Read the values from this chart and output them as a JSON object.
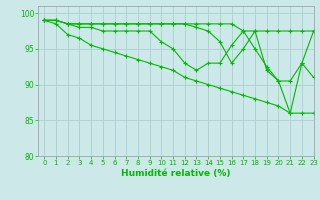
{
  "title": "",
  "xlabel": "Humidité relative (%)",
  "ylabel": "",
  "background_color": "#cce8e8",
  "grid_color": "#aad0d0",
  "line_color": "#00bb00",
  "marker": "+",
  "xlim": [
    -0.5,
    23
  ],
  "ylim": [
    80,
    101
  ],
  "yticks": [
    80,
    85,
    90,
    95,
    100
  ],
  "xticks": [
    0,
    1,
    2,
    3,
    4,
    5,
    6,
    7,
    8,
    9,
    10,
    11,
    12,
    13,
    14,
    15,
    16,
    17,
    18,
    19,
    20,
    21,
    22,
    23
  ],
  "series": [
    [
      99,
      99,
      98.5,
      98.5,
      98.5,
      98.5,
      98.5,
      98.5,
      98.5,
      98.5,
      98.5,
      98.5,
      98.5,
      98.5,
      98.5,
      98.5,
      98.5,
      97.5,
      97.5,
      97.5,
      97.5,
      97.5,
      97.5,
      97.5
    ],
    [
      99,
      99,
      98.5,
      98.5,
      98.5,
      98.5,
      98.5,
      98.5,
      98.5,
      98.5,
      98.5,
      98.5,
      98.5,
      98,
      97.5,
      96,
      93,
      95,
      97.5,
      92,
      90.5,
      90.5,
      93,
      97.5
    ],
    [
      99,
      99,
      98.5,
      98,
      98,
      97.5,
      97.5,
      97.5,
      97.5,
      97.5,
      96,
      95,
      93,
      92,
      93,
      93,
      95.5,
      97.5,
      95,
      92.5,
      90.5,
      86,
      93,
      91
    ],
    [
      99,
      98.5,
      97,
      96.5,
      95.5,
      95,
      94.5,
      94,
      93.5,
      93,
      92.5,
      92,
      91,
      90.5,
      90,
      89.5,
      89,
      88.5,
      88,
      87.5,
      87,
      86,
      86,
      86
    ]
  ]
}
